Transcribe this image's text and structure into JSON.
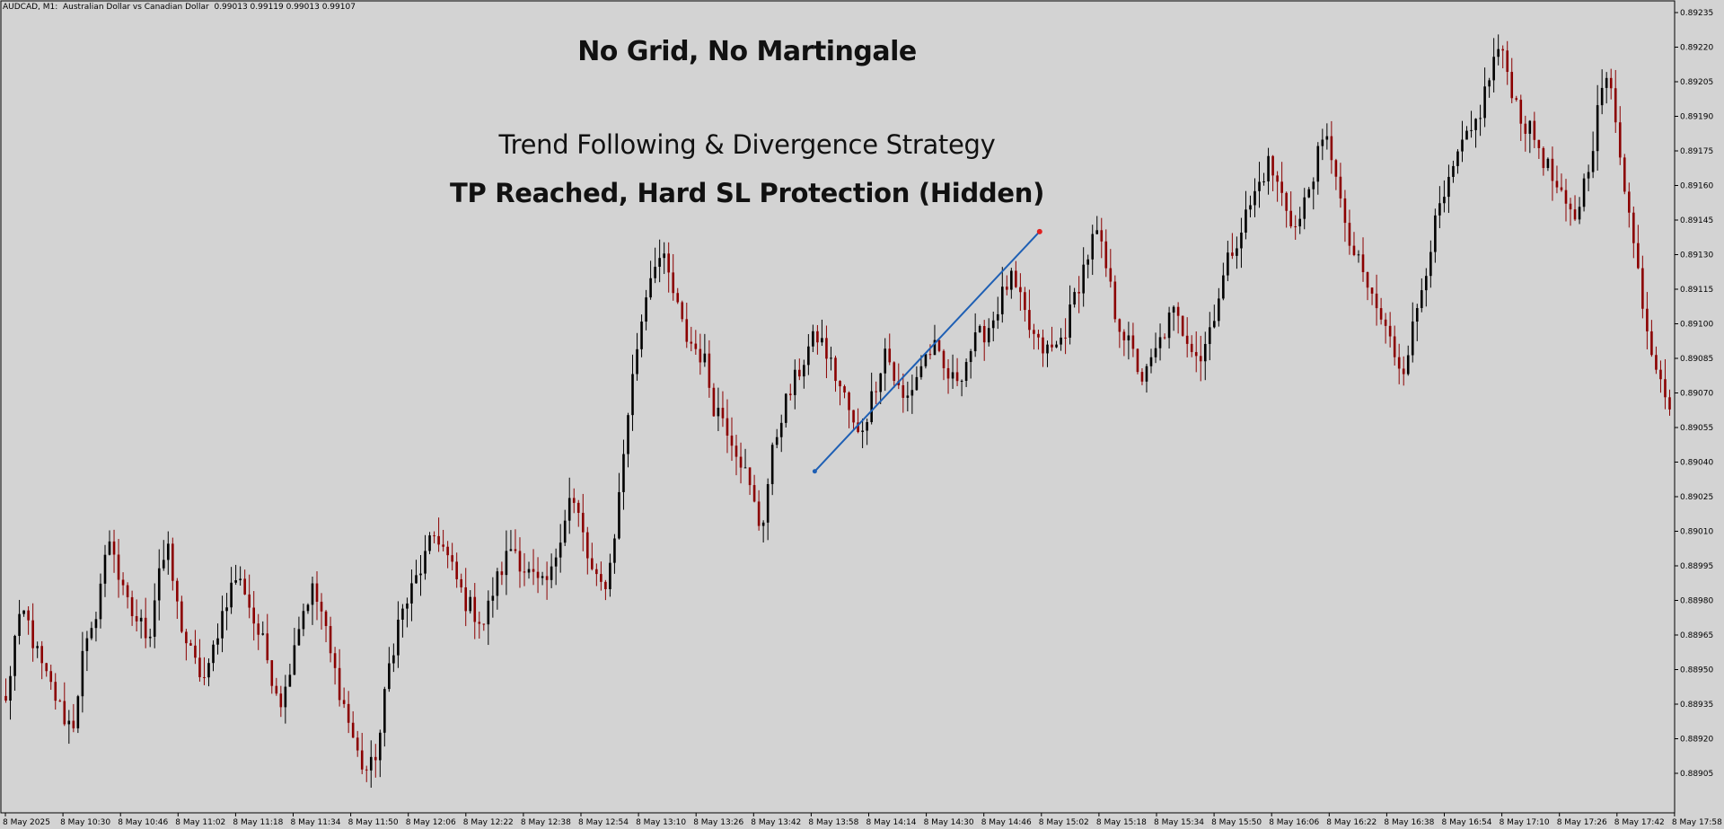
{
  "header": {
    "symbol_info": "AUDCAD, M1:  Australian Dollar vs Canadian Dollar  0.99013 0.99119 0.99013 0.99107"
  },
  "overlay": {
    "headline": "No Grid, No Martingale",
    "subtitle": "Trend Following & Divergence Strategy",
    "status": "TP Reached, Hard SL Protection (Hidden)"
  },
  "colors": {
    "background": "#d3d3d3",
    "bull_candle": "#000000",
    "bear_candle": "#8b0000",
    "trade_line": "#1e5fb4",
    "tp_marker": "#e02020"
  },
  "chart_data": {
    "type": "candlestick",
    "title": "",
    "grid": false,
    "ylim": [
      0.88895,
      0.8924
    ],
    "y_ticks": [
      "0.89235",
      "0.89220",
      "0.89205",
      "0.89190",
      "0.89175",
      "0.89160",
      "0.89145",
      "0.89130",
      "0.89115",
      "0.89100",
      "0.89085",
      "0.89070",
      "0.89055",
      "0.89040",
      "0.89025",
      "0.89010",
      "0.88995",
      "0.88980",
      "0.88965",
      "0.88950",
      "0.88935",
      "0.88920",
      "0.88905"
    ],
    "x_ticks": [
      "8 May 2025",
      "8 May 10:30",
      "8 May 10:46",
      "8 May 11:02",
      "8 May 11:18",
      "8 May 11:34",
      "8 May 11:50",
      "8 May 12:06",
      "8 May 12:22",
      "8 May 12:38",
      "8 May 12:54",
      "8 May 13:10",
      "8 May 13:26",
      "8 May 13:42",
      "8 May 13:58",
      "8 May 14:14",
      "8 May 14:30",
      "8 May 14:46",
      "8 May 15:02",
      "8 May 15:18",
      "8 May 15:34",
      "8 May 15:50",
      "8 May 16:06",
      "8 May 16:22",
      "8 May 16:38",
      "8 May 16:54",
      "8 May 17:10",
      "8 May 17:26",
      "8 May 17:42",
      "8 May 17:58"
    ],
    "trend_closes": [
      0.88935,
      0.88965,
      0.88975,
      0.8896,
      0.88948,
      0.8894,
      0.8893,
      0.88925,
      0.88955,
      0.88965,
      0.8899,
      0.8901,
      0.88985,
      0.88975,
      0.8897,
      0.88965,
      0.88995,
      0.89,
      0.88975,
      0.8896,
      0.8895,
      0.88945,
      0.88965,
      0.8898,
      0.8899,
      0.88985,
      0.8897,
      0.8896,
      0.88945,
      0.88935,
      0.8896,
      0.88975,
      0.88985,
      0.88975,
      0.88955,
      0.8894,
      0.88925,
      0.8891,
      0.88905,
      0.88918,
      0.8895,
      0.8897,
      0.8898,
      0.8899,
      0.89,
      0.8901,
      0.89,
      0.8899,
      0.8898,
      0.88975,
      0.8897,
      0.88985,
      0.88995,
      0.89005,
      0.88995,
      0.8899,
      0.88985,
      0.8899,
      0.8901,
      0.89025,
      0.89015,
      0.88995,
      0.88985,
      0.8899,
      0.8902,
      0.8906,
      0.8909,
      0.89115,
      0.8913,
      0.89125,
      0.8911,
      0.89095,
      0.8909,
      0.89085,
      0.89065,
      0.8906,
      0.8905,
      0.8904,
      0.89025,
      0.8901,
      0.8904,
      0.8906,
      0.8907,
      0.8908,
      0.8909,
      0.89095,
      0.89085,
      0.89075,
      0.89065,
      0.8905,
      0.8906,
      0.89075,
      0.8909,
      0.89075,
      0.89065,
      0.89075,
      0.89085,
      0.8909,
      0.8908,
      0.89075,
      0.8908,
      0.8909,
      0.89095,
      0.891,
      0.8911,
      0.8912,
      0.8911,
      0.89098,
      0.8909,
      0.89088,
      0.8909,
      0.891,
      0.89115,
      0.89128,
      0.8914,
      0.89125,
      0.89105,
      0.89095,
      0.89085,
      0.89075,
      0.89085,
      0.89095,
      0.89105,
      0.89098,
      0.89092,
      0.89085,
      0.891,
      0.89115,
      0.8913,
      0.8914,
      0.8915,
      0.8916,
      0.8917,
      0.8916,
      0.8915,
      0.8914,
      0.89155,
      0.8917,
      0.8918,
      0.8917,
      0.8914,
      0.8913,
      0.8912,
      0.8911,
      0.891,
      0.8909,
      0.8908,
      0.89095,
      0.89115,
      0.89135,
      0.8915,
      0.8916,
      0.89175,
      0.8918,
      0.8919,
      0.89205,
      0.8922,
      0.8921,
      0.89195,
      0.89185,
      0.8918,
      0.8917,
      0.8916,
      0.8915,
      0.89145,
      0.8916,
      0.8918,
      0.89205,
      0.892,
      0.8917,
      0.8914,
      0.89115,
      0.8909,
      0.8908,
      0.89065
    ],
    "trade": {
      "entry_price": 0.89036,
      "exit_price": 0.8914,
      "entry_time": "8 May 13:58",
      "exit_time": "8 May 15:02"
    }
  }
}
